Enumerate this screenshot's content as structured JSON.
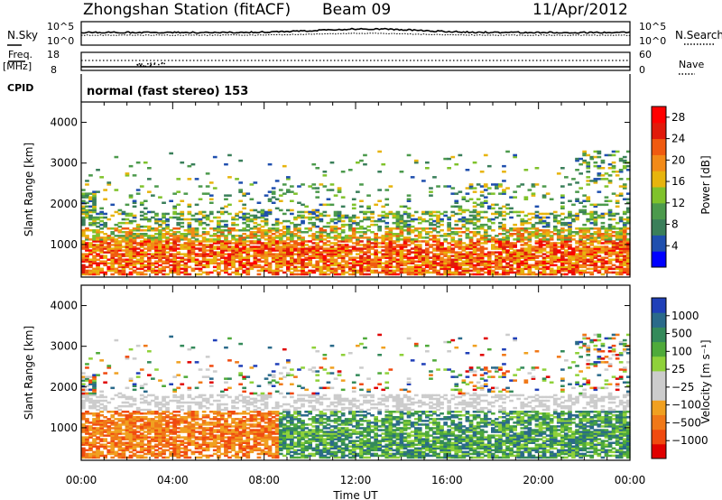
{
  "header": {
    "station": "Zhongshan Station (fitACF)",
    "beam": "Beam 09",
    "date": "11/Apr/2012"
  },
  "panel_labels": {
    "nsky": "N.Sky",
    "nsearch": "N.Search",
    "freq_line1": "Freq.",
    "freq_line2": "[MHz]",
    "nave": "Nave",
    "cpid": "CPID",
    "cpid_text": "normal (fast stereo) 153",
    "noise_ticks_left": [
      "10^5",
      "10^0"
    ],
    "noise_ticks_right": [
      "10^5",
      "10^0"
    ],
    "freq_ticks_left": [
      "18",
      "8"
    ],
    "freq_ticks_right": [
      "60",
      "0"
    ]
  },
  "colors": {
    "power_scale": [
      "#0000ff",
      "#1f4fae",
      "#3a7f5a",
      "#4c9a4c",
      "#7fc22b",
      "#e7b40d",
      "#f28a18",
      "#f05a10",
      "#e11a0b",
      "#ff0000"
    ],
    "velocity_scale": [
      "#2040b8",
      "#2a6a8a",
      "#348a5a",
      "#4faa3a",
      "#8fd13a",
      "#cccccc",
      "#cccccc",
      "#f0a020",
      "#f07818",
      "#f04a10",
      "#e00000"
    ]
  },
  "chart_data": [
    {
      "type": "heatmap",
      "name": "power",
      "x_ticks": [
        "00:00",
        "04:00",
        "08:00",
        "12:00",
        "16:00",
        "20:00",
        "00:00"
      ],
      "xlim_hours": [
        0,
        24
      ],
      "ylabel": "Slant Range [km]",
      "y_ticks": [
        1000,
        2000,
        3000,
        4000
      ],
      "ylim": [
        200,
        4500
      ],
      "colorbar": {
        "label": "Power [dB]",
        "ticks": [
          4,
          8,
          12,
          16,
          20,
          24,
          28
        ],
        "range": [
          0,
          30
        ]
      },
      "grid": false
    },
    {
      "type": "heatmap",
      "name": "velocity",
      "x_ticks": [
        "00:00",
        "04:00",
        "08:00",
        "12:00",
        "16:00",
        "20:00",
        "00:00"
      ],
      "xlabel": "Time UT",
      "ylabel": "Slant Range [km]",
      "y_ticks": [
        1000,
        2000,
        3000,
        4000
      ],
      "ylim": [
        200,
        4500
      ],
      "colorbar": {
        "label": "Velocity [m s⁻¹]",
        "ticks": [
          "1000",
          "500",
          "100",
          "25",
          "−25",
          "−100",
          "−500",
          "−1000"
        ]
      },
      "grid": false
    }
  ]
}
